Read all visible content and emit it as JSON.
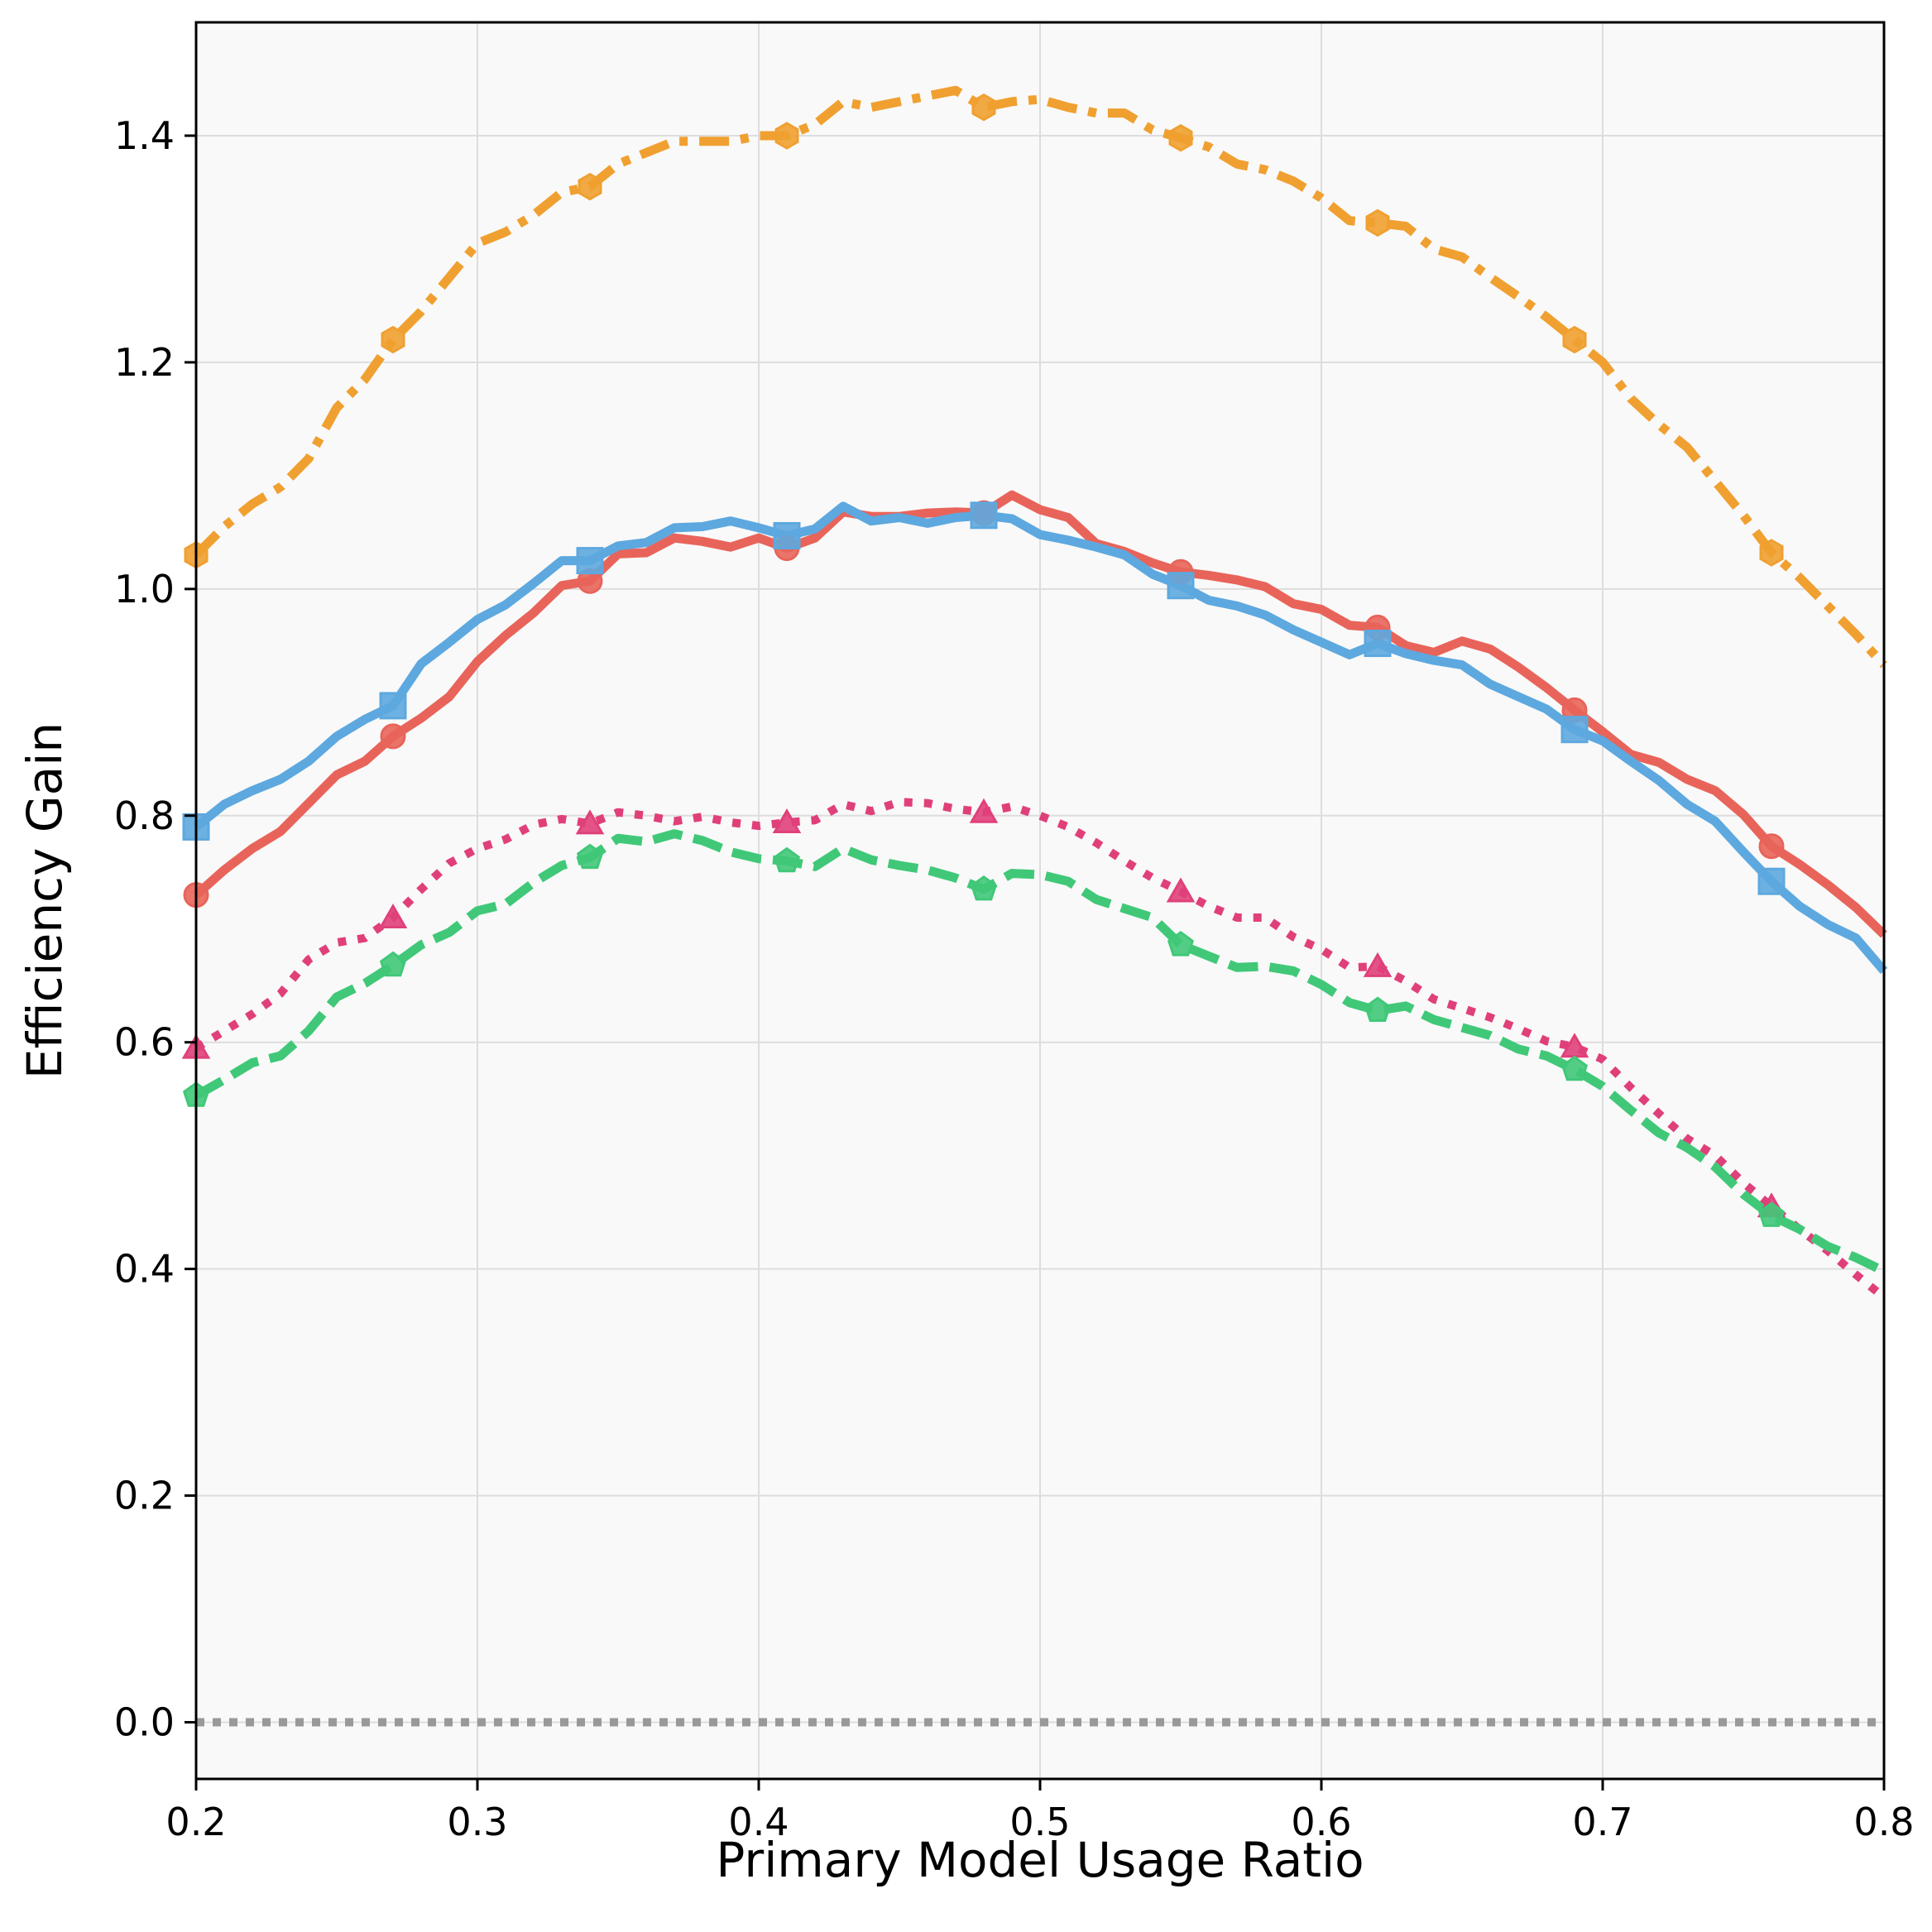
{
  "chart_data": {
    "type": "line",
    "title": "",
    "xlabel": "Primary Model Usage Ratio",
    "ylabel": "Efficiency Gain",
    "xlim": [
      0.2,
      0.8
    ],
    "ylim": [
      -0.05,
      1.5
    ],
    "xticks": [
      0.2,
      0.3,
      0.4,
      0.5,
      0.6,
      0.7,
      0.8
    ],
    "xtick_labels": [
      "0.2",
      "0.3",
      "0.4",
      "0.5",
      "0.6",
      "0.7",
      "0.8"
    ],
    "yticks": [
      0.0,
      0.2,
      0.4,
      0.6,
      0.8,
      1.0,
      1.2,
      1.4
    ],
    "ytick_labels": [
      "0.0",
      "0.2",
      "0.4",
      "0.6",
      "0.8",
      "1.0",
      "1.2",
      "1.4"
    ],
    "grid": true,
    "legend": false,
    "reference_line": {
      "y": 0.0,
      "style": "dotted",
      "color": "#999999"
    },
    "marker_x": [
      0.2,
      0.27,
      0.34,
      0.41,
      0.48,
      0.55,
      0.62,
      0.69,
      0.76
    ],
    "series": [
      {
        "name": "orange dash-dot",
        "color": "#F0A030",
        "dash": "dashdot",
        "marker": "hexagon",
        "x": [
          0.2,
          0.21,
          0.22,
          0.23,
          0.24,
          0.25,
          0.26,
          0.27,
          0.28,
          0.29,
          0.3,
          0.31,
          0.32,
          0.33,
          0.34,
          0.35,
          0.36,
          0.37,
          0.38,
          0.39,
          0.4,
          0.41,
          0.42,
          0.43,
          0.44,
          0.45,
          0.46,
          0.47,
          0.48,
          0.49,
          0.5,
          0.51,
          0.52,
          0.53,
          0.54,
          0.55,
          0.56,
          0.57,
          0.58,
          0.59,
          0.6,
          0.61,
          0.62,
          0.63,
          0.64,
          0.65,
          0.66,
          0.67,
          0.68,
          0.69,
          0.7,
          0.71,
          0.72,
          0.73,
          0.74,
          0.75,
          0.76,
          0.77,
          0.78,
          0.79,
          0.8
        ],
        "y": [
          1.03,
          1.055,
          1.075,
          1.09,
          1.115,
          1.16,
          1.185,
          1.22,
          1.245,
          1.275,
          1.305,
          1.315,
          1.33,
          1.35,
          1.355,
          1.375,
          1.385,
          1.395,
          1.395,
          1.395,
          1.4,
          1.4,
          1.41,
          1.43,
          1.425,
          1.43,
          1.435,
          1.44,
          1.425,
          1.43,
          1.432,
          1.425,
          1.42,
          1.42,
          1.405,
          1.398,
          1.39,
          1.375,
          1.37,
          1.36,
          1.345,
          1.325,
          1.323,
          1.32,
          1.3,
          1.293,
          1.275,
          1.258,
          1.24,
          1.22,
          1.2,
          1.168,
          1.145,
          1.125,
          1.095,
          1.065,
          1.032,
          1.01,
          0.985,
          0.96,
          0.933
        ]
      },
      {
        "name": "red solid",
        "color": "#E8645A",
        "dash": "solid",
        "marker": "circle",
        "x": [
          0.2,
          0.21,
          0.22,
          0.23,
          0.24,
          0.25,
          0.26,
          0.27,
          0.28,
          0.29,
          0.3,
          0.31,
          0.32,
          0.33,
          0.34,
          0.35,
          0.36,
          0.37,
          0.38,
          0.39,
          0.4,
          0.41,
          0.42,
          0.43,
          0.44,
          0.45,
          0.46,
          0.47,
          0.48,
          0.49,
          0.5,
          0.51,
          0.52,
          0.53,
          0.54,
          0.55,
          0.56,
          0.57,
          0.58,
          0.59,
          0.6,
          0.61,
          0.62,
          0.63,
          0.64,
          0.65,
          0.66,
          0.67,
          0.68,
          0.69,
          0.7,
          0.71,
          0.72,
          0.73,
          0.74,
          0.75,
          0.76,
          0.77,
          0.78,
          0.79,
          0.8
        ],
        "y": [
          0.73,
          0.752,
          0.771,
          0.786,
          0.811,
          0.836,
          0.848,
          0.87,
          0.886,
          0.905,
          0.936,
          0.959,
          0.979,
          1.003,
          1.007,
          1.031,
          1.032,
          1.045,
          1.042,
          1.037,
          1.045,
          1.036,
          1.045,
          1.068,
          1.064,
          1.064,
          1.067,
          1.068,
          1.067,
          1.083,
          1.07,
          1.063,
          1.04,
          1.033,
          1.023,
          1.015,
          1.012,
          1.008,
          1.002,
          0.987,
          0.982,
          0.968,
          0.966,
          0.95,
          0.944,
          0.954,
          0.947,
          0.931,
          0.913,
          0.893,
          0.874,
          0.854,
          0.847,
          0.832,
          0.822,
          0.801,
          0.773,
          0.757,
          0.739,
          0.719,
          0.695
        ]
      },
      {
        "name": "blue solid",
        "color": "#5DA8DF",
        "dash": "solid",
        "marker": "square",
        "x": [
          0.2,
          0.21,
          0.22,
          0.23,
          0.24,
          0.25,
          0.26,
          0.27,
          0.28,
          0.29,
          0.3,
          0.31,
          0.32,
          0.33,
          0.34,
          0.35,
          0.36,
          0.37,
          0.38,
          0.39,
          0.4,
          0.41,
          0.42,
          0.43,
          0.44,
          0.45,
          0.46,
          0.47,
          0.48,
          0.49,
          0.5,
          0.51,
          0.52,
          0.53,
          0.54,
          0.55,
          0.56,
          0.57,
          0.58,
          0.59,
          0.6,
          0.61,
          0.62,
          0.63,
          0.64,
          0.65,
          0.66,
          0.67,
          0.68,
          0.69,
          0.7,
          0.71,
          0.72,
          0.73,
          0.74,
          0.75,
          0.76,
          0.77,
          0.78,
          0.79,
          0.8
        ],
        "y": [
          0.79,
          0.81,
          0.822,
          0.832,
          0.848,
          0.87,
          0.885,
          0.897,
          0.934,
          0.953,
          0.973,
          0.986,
          1.005,
          1.025,
          1.025,
          1.038,
          1.041,
          1.054,
          1.055,
          1.06,
          1.054,
          1.047,
          1.053,
          1.073,
          1.06,
          1.063,
          1.058,
          1.063,
          1.065,
          1.062,
          1.048,
          1.043,
          1.037,
          1.03,
          1.013,
          1.003,
          0.99,
          0.985,
          0.977,
          0.964,
          0.953,
          0.942,
          0.952,
          0.943,
          0.937,
          0.933,
          0.916,
          0.905,
          0.894,
          0.876,
          0.866,
          0.848,
          0.831,
          0.81,
          0.795,
          0.768,
          0.742,
          0.72,
          0.704,
          0.692,
          0.663
        ]
      },
      {
        "name": "pink dotted",
        "color": "#E0407A",
        "dash": "dotted",
        "marker": "triangle",
        "x": [
          0.2,
          0.21,
          0.22,
          0.23,
          0.24,
          0.25,
          0.26,
          0.27,
          0.28,
          0.29,
          0.3,
          0.31,
          0.32,
          0.33,
          0.34,
          0.35,
          0.36,
          0.37,
          0.38,
          0.39,
          0.4,
          0.41,
          0.42,
          0.43,
          0.44,
          0.45,
          0.46,
          0.47,
          0.48,
          0.49,
          0.5,
          0.51,
          0.52,
          0.53,
          0.54,
          0.55,
          0.56,
          0.57,
          0.58,
          0.59,
          0.6,
          0.61,
          0.62,
          0.63,
          0.64,
          0.65,
          0.66,
          0.67,
          0.68,
          0.69,
          0.7,
          0.71,
          0.72,
          0.73,
          0.74,
          0.75,
          0.76,
          0.77,
          0.78,
          0.79,
          0.8
        ],
        "y": [
          0.595,
          0.61,
          0.625,
          0.643,
          0.673,
          0.688,
          0.692,
          0.71,
          0.735,
          0.758,
          0.771,
          0.779,
          0.792,
          0.797,
          0.793,
          0.803,
          0.8,
          0.795,
          0.799,
          0.794,
          0.791,
          0.794,
          0.796,
          0.81,
          0.804,
          0.812,
          0.811,
          0.806,
          0.803,
          0.808,
          0.8,
          0.79,
          0.776,
          0.76,
          0.745,
          0.733,
          0.72,
          0.71,
          0.71,
          0.693,
          0.682,
          0.666,
          0.667,
          0.654,
          0.638,
          0.63,
          0.622,
          0.612,
          0.601,
          0.596,
          0.585,
          0.56,
          0.537,
          0.515,
          0.5,
          0.476,
          0.455,
          0.435,
          0.416,
          0.395,
          0.375
        ]
      },
      {
        "name": "green dashed",
        "color": "#40C878",
        "dash": "dashed",
        "marker": "pentagon",
        "x": [
          0.2,
          0.21,
          0.22,
          0.23,
          0.24,
          0.25,
          0.26,
          0.27,
          0.28,
          0.29,
          0.3,
          0.31,
          0.32,
          0.33,
          0.34,
          0.35,
          0.36,
          0.37,
          0.38,
          0.39,
          0.4,
          0.41,
          0.42,
          0.43,
          0.44,
          0.45,
          0.46,
          0.47,
          0.48,
          0.49,
          0.5,
          0.51,
          0.52,
          0.53,
          0.54,
          0.55,
          0.56,
          0.57,
          0.58,
          0.59,
          0.6,
          0.61,
          0.62,
          0.63,
          0.64,
          0.65,
          0.66,
          0.67,
          0.68,
          0.69,
          0.7,
          0.71,
          0.72,
          0.73,
          0.74,
          0.75,
          0.76,
          0.77,
          0.78,
          0.79,
          0.8
        ],
        "y": [
          0.553,
          0.567,
          0.582,
          0.588,
          0.61,
          0.64,
          0.652,
          0.668,
          0.686,
          0.697,
          0.716,
          0.722,
          0.741,
          0.756,
          0.763,
          0.78,
          0.777,
          0.784,
          0.778,
          0.768,
          0.762,
          0.76,
          0.755,
          0.771,
          0.761,
          0.756,
          0.752,
          0.745,
          0.735,
          0.749,
          0.748,
          0.742,
          0.726,
          0.718,
          0.71,
          0.686,
          0.676,
          0.666,
          0.667,
          0.663,
          0.651,
          0.635,
          0.628,
          0.632,
          0.62,
          0.613,
          0.606,
          0.594,
          0.588,
          0.576,
          0.561,
          0.54,
          0.52,
          0.507,
          0.49,
          0.466,
          0.447,
          0.435,
          0.42,
          0.41,
          0.398
        ]
      }
    ]
  }
}
